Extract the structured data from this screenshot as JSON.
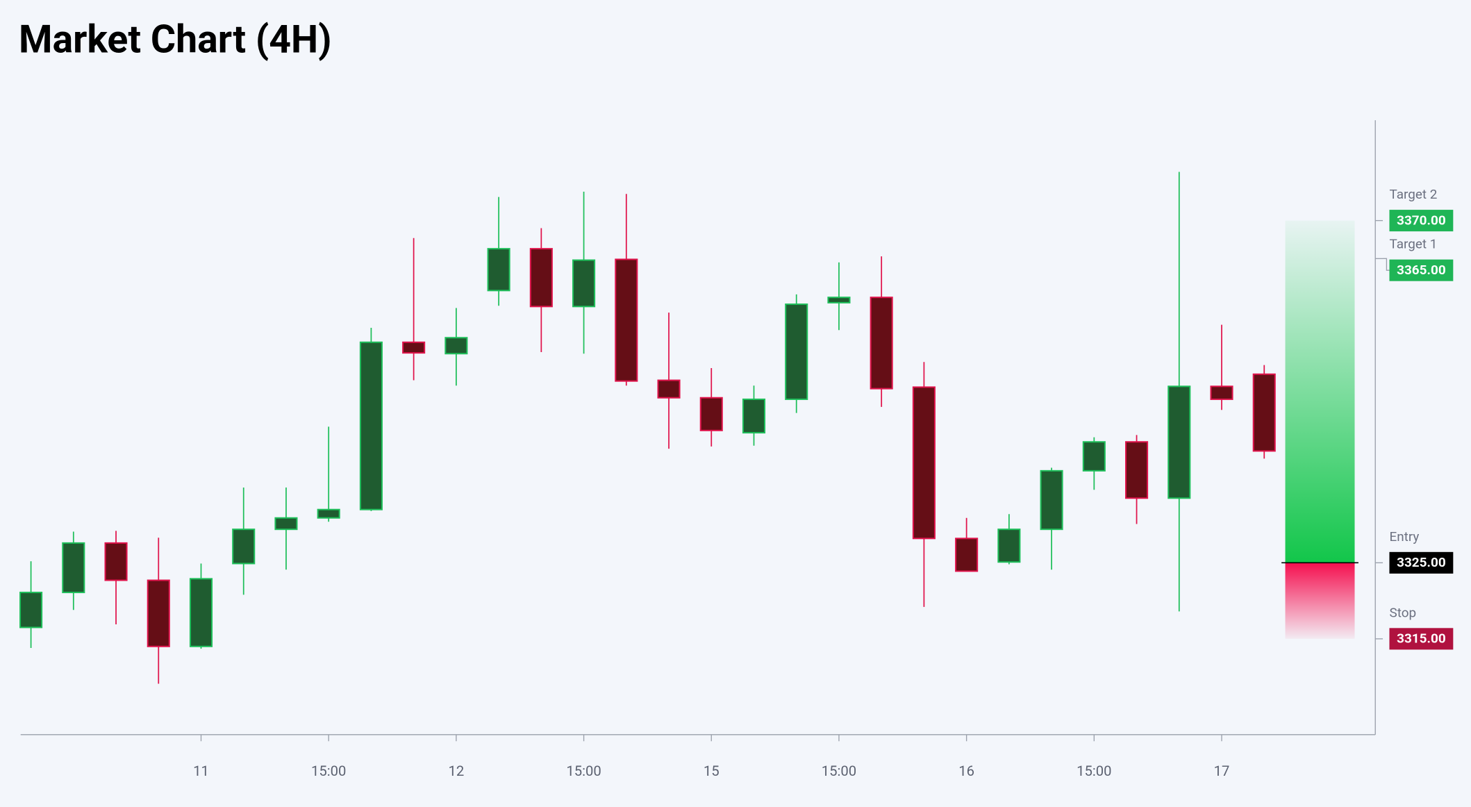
{
  "chart_data": {
    "type": "candlestick",
    "title": "Market Chart (4H)",
    "categories": [
      null,
      null,
      null,
      null,
      "11",
      null,
      null,
      "15:00",
      null,
      null,
      "12",
      null,
      null,
      "15:00",
      null,
      null,
      "15",
      null,
      null,
      "15:00",
      null,
      null,
      "16",
      null,
      null,
      "15:00",
      null,
      null,
      "17",
      null
    ],
    "open": [
      3316.5,
      3321.1,
      3327.6,
      3322.7,
      3314.0,
      3324.9,
      3329.4,
      3330.9,
      3332.0,
      3354.0,
      3352.5,
      3360.8,
      3366.3,
      3358.7,
      3364.9,
      3349.0,
      3346.7,
      3342.1,
      3346.5,
      3359.2,
      3359.9,
      3348.1,
      3328.2,
      3325.1,
      3329.4,
      3337.1,
      3340.9,
      3333.5,
      3348.2,
      3349.8
    ],
    "high": [
      3325.2,
      3329.1,
      3329.2,
      3328.3,
      3324.9,
      3334.9,
      3334.9,
      3342.9,
      3355.9,
      3367.7,
      3358.5,
      3373.1,
      3369.0,
      3373.8,
      3373.5,
      3357.9,
      3350.6,
      3348.3,
      3360.3,
      3364.5,
      3365.3,
      3351.4,
      3330.9,
      3331.4,
      3337.5,
      3341.5,
      3341.8,
      3376.4,
      3356.3,
      3351.0
    ],
    "low": [
      3313.8,
      3318.8,
      3316.9,
      3309.1,
      3313.7,
      3320.8,
      3324.1,
      3330.4,
      3331.8,
      3349.0,
      3348.3,
      3358.8,
      3352.7,
      3352.5,
      3348.3,
      3340.0,
      3340.3,
      3340.4,
      3344.7,
      3355.6,
      3345.5,
      3319.2,
      3323.9,
      3324.8,
      3324.1,
      3334.6,
      3330.1,
      3318.6,
      3345.1,
      3338.7
    ],
    "close": [
      3321.1,
      3327.6,
      3322.7,
      3314.0,
      3322.9,
      3329.4,
      3330.9,
      3332.0,
      3354.0,
      3352.6,
      3354.6,
      3366.3,
      3358.7,
      3364.8,
      3348.9,
      3346.7,
      3342.4,
      3346.5,
      3359.0,
      3359.9,
      3347.9,
      3328.2,
      3323.9,
      3329.4,
      3337.1,
      3340.9,
      3333.5,
      3348.2,
      3346.5,
      3339.7
    ],
    "up_color": "#1f5c30",
    "up_border": "#1fbf5b",
    "down_color": "#650e16",
    "down_border": "#e0144c",
    "ylim": [
      3302.4,
      3383.2
    ],
    "levels": [
      {
        "name": "Target 2",
        "price": {
          "value": 3370,
          "label": "3370.00"
        },
        "color": "#1fb556"
      },
      {
        "name": "Target 1",
        "price": {
          "value": 3365,
          "label": "3365.00"
        },
        "color": "#1fb556"
      },
      {
        "name": "Entry",
        "price": {
          "value": 3325,
          "label": "3325.00"
        },
        "color": "#000000"
      },
      {
        "name": "Stop",
        "price": {
          "value": 3315,
          "label": "3315.00"
        },
        "color": "#b0123f"
      }
    ]
  }
}
